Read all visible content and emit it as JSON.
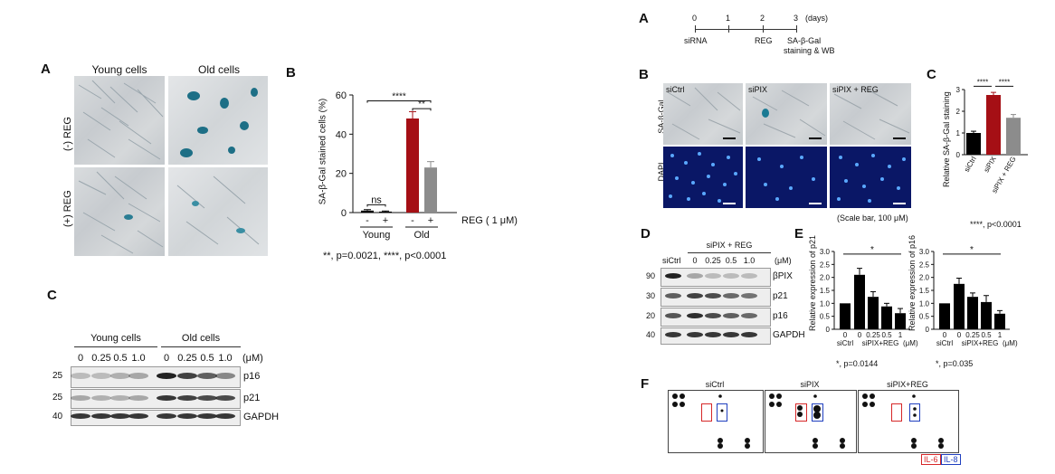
{
  "left": {
    "A": {
      "label": "A",
      "col_young": "Young cells",
      "col_old": "Old cells",
      "row_minus": "(-) REG",
      "row_plus": "(+) REG"
    },
    "B": {
      "label": "B",
      "chart_data": {
        "type": "bar",
        "title": "",
        "ylabel": "SA-β-Gal stained cells (%)",
        "ylim": [
          0,
          60
        ],
        "yticks": [
          "0",
          "20",
          "40",
          "60"
        ],
        "categories": [
          "Young -",
          "Young +",
          "Old -",
          "Old +"
        ],
        "values": [
          1,
          0.5,
          48,
          23
        ],
        "errors": [
          0.5,
          0.3,
          3.5,
          3
        ],
        "colors": [
          "#000000",
          "#000000",
          "#a50f15",
          "#8c8c8c"
        ],
        "groups": [
          "Young",
          "Old"
        ],
        "treatment_label": "REG  ( 1 μM)",
        "sign_minus": "-",
        "sign_plus": "+",
        "sig": [
          "****",
          "**",
          "ns"
        ]
      },
      "footnote": "**, p=0.0021,  ****, p<0.0001"
    },
    "C": {
      "label": "C",
      "group_young": "Young cells",
      "group_old": "Old cells",
      "unit": "(μM)",
      "doses": [
        "0",
        "0.25",
        "0.5",
        "1.0",
        "0",
        "0.25",
        "0.5",
        "1.0"
      ],
      "markers": [
        "25",
        "25",
        "40"
      ],
      "proteins": [
        "p16",
        "p21",
        "GAPDH"
      ]
    }
  },
  "right": {
    "A": {
      "label": "A",
      "ticks": [
        "0",
        "1",
        "2",
        "3"
      ],
      "unit": "(days)",
      "events": [
        "siRNA",
        "REG",
        "SA-β-Gal",
        "staining & WB"
      ]
    },
    "B": {
      "label": "B",
      "cols": [
        "siCtrl",
        "siPIX",
        "siPIX  + REG"
      ],
      "row_sa": "SA-β-Gal",
      "row_dapi": "DAPI",
      "scale": "(Scale bar, 100 μM)"
    },
    "C": {
      "label": "C",
      "chart_data": {
        "type": "bar",
        "title": "",
        "ylabel": "Relative SA-β-Gal staining",
        "ylim": [
          0,
          3
        ],
        "yticks": [
          "0",
          "1",
          "2",
          "3"
        ],
        "categories": [
          "siCtrl",
          "siPIX",
          "siPIX + REG"
        ],
        "values": [
          1.0,
          2.75,
          1.7
        ],
        "errors": [
          0.08,
          0.12,
          0.15
        ],
        "colors": [
          "#000000",
          "#a50f15",
          "#8c8c8c"
        ],
        "sig": [
          "****",
          "****"
        ]
      },
      "footnote": "****, p<0.0001"
    },
    "D": {
      "label": "D",
      "group": "siPIX + REG",
      "unit": "(μM)",
      "lane0": "siCtrl",
      "doses": [
        "0",
        "0.25",
        "0.5",
        "1.0"
      ],
      "markers": [
        "90",
        "30",
        "20",
        "40"
      ],
      "proteins": [
        "βPIX",
        "p21",
        "p16",
        "GAPDH"
      ]
    },
    "E": {
      "label": "E",
      "chart_data": [
        {
          "type": "bar",
          "ylabel": "Relative expression of p21",
          "ylim": [
            0,
            3.0
          ],
          "yticks": [
            "0",
            "0.5",
            "1.0",
            "1.5",
            "2.0",
            "2.5",
            "3.0"
          ],
          "categories": [
            "0",
            "0",
            "0.25",
            "0.5",
            "1"
          ],
          "values": [
            1.0,
            2.1,
            1.25,
            0.88,
            0.62
          ],
          "errors": [
            0,
            0.25,
            0.2,
            0.12,
            0.18
          ],
          "xgroup1": "siCtrl",
          "xgroup2": "siPIX+REG",
          "unit": "(μM)",
          "sig": "*",
          "footnote": "*, p=0.0144"
        },
        {
          "type": "bar",
          "ylabel": "Relative expression of p16",
          "ylim": [
            0,
            3.0
          ],
          "yticks": [
            "0",
            "0.5",
            "1.0",
            "1.5",
            "2.0",
            "2.5",
            "3.0"
          ],
          "categories": [
            "0",
            "0",
            "0.25",
            "0.5",
            "1"
          ],
          "values": [
            1.0,
            1.75,
            1.25,
            1.05,
            0.6
          ],
          "errors": [
            0,
            0.22,
            0.15,
            0.25,
            0.12
          ],
          "xgroup1": "siCtrl",
          "xgroup2": "siPIX+REG",
          "unit": "(μM)",
          "sig": "*",
          "footnote": "*, p=0.035"
        }
      ]
    },
    "F": {
      "label": "F",
      "panels": [
        "siCtrl",
        "siPIX",
        "siPIX+REG"
      ],
      "legend": [
        "IL-6",
        "IL-8"
      ],
      "legend_colors": [
        "#d62728",
        "#1f3fbf"
      ]
    }
  }
}
